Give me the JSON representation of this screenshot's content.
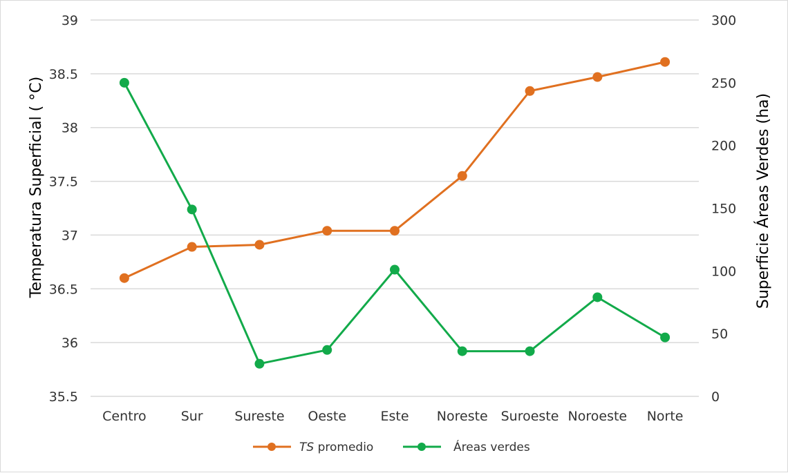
{
  "chart_data": {
    "type": "line",
    "categories": [
      "Centro",
      "Sur",
      "Sureste",
      "Oeste",
      "Este",
      "Noreste",
      "Suroeste",
      "Noroeste",
      "Norte"
    ],
    "series": [
      {
        "name_italic": "TS",
        "name_rest": " promedio",
        "axis": "left",
        "color": "#E07020",
        "values": [
          36.6,
          36.89,
          36.91,
          37.04,
          37.04,
          37.55,
          38.34,
          38.47,
          38.61
        ]
      },
      {
        "name": "Áreas verdes",
        "axis": "right",
        "color": "#12AA4A",
        "values": [
          250,
          149,
          26,
          37,
          101,
          36,
          36,
          79,
          47
        ]
      }
    ],
    "ylabel": "Temperatura Superficial ( °C)",
    "y2label": "Superficie Áreas Verdes (ha)",
    "ylim": [
      35.5,
      39
    ],
    "y2lim": [
      0,
      300
    ],
    "yticks": [
      "35.5",
      "36",
      "36.5",
      "37",
      "37.5",
      "38",
      "38.5",
      "39"
    ],
    "y2ticks": [
      "0",
      "50",
      "100",
      "150",
      "200",
      "250",
      "300"
    ],
    "grid": true,
    "legend_position": "bottom"
  }
}
